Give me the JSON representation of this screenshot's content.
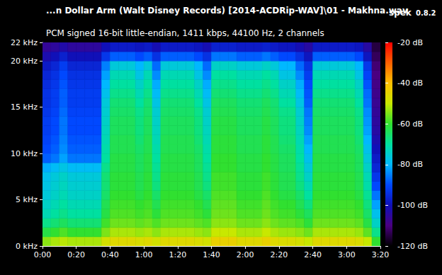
{
  "chart_data": {
    "type": "heatmap",
    "title": "...n Dollar Arm (Walt Disney Records) [2014-ACDRip-WAV]\\01 - Makhna.wav",
    "subtitle": "PCM signed 16-bit little-endian, 1411 kbps, 44100 Hz, 2 channels",
    "annotations": [
      "spek",
      "0.8.2"
    ],
    "grid": false,
    "xlim": [
      0,
      200
    ],
    "xticks": [
      {
        "value": 0,
        "label": "0:00"
      },
      {
        "value": 20,
        "label": "0:20"
      },
      {
        "value": 40,
        "label": "0:40"
      },
      {
        "value": 60,
        "label": "1:00"
      },
      {
        "value": 80,
        "label": "1:20"
      },
      {
        "value": 100,
        "label": "1:40"
      },
      {
        "value": 120,
        "label": "2:00"
      },
      {
        "value": 140,
        "label": "2:20"
      },
      {
        "value": 160,
        "label": "2:40"
      },
      {
        "value": 180,
        "label": "3:00"
      },
      {
        "value": 200,
        "label": "3:20"
      }
    ],
    "ylim": [
      0,
      22
    ],
    "yticks": [
      {
        "value": 0,
        "label": "0 kHz"
      },
      {
        "value": 5,
        "label": "5 kHz"
      },
      {
        "value": 10,
        "label": "10 kHz"
      },
      {
        "value": 15,
        "label": "15 kHz"
      },
      {
        "value": 20,
        "label": "20 kHz"
      },
      {
        "value": 22,
        "label": "22 kHz"
      }
    ],
    "time_bins": [
      0,
      5,
      10,
      15,
      20,
      25,
      30,
      35,
      40,
      45,
      50,
      55,
      60,
      65,
      70,
      75,
      80,
      85,
      90,
      95,
      100,
      105,
      110,
      115,
      120,
      125,
      130,
      135,
      140,
      145,
      150,
      155,
      160,
      165,
      170,
      175,
      180,
      185,
      190,
      195,
      200
    ],
    "freq_bins": [
      0,
      1,
      2,
      3,
      4,
      5,
      6,
      7,
      8,
      9,
      10,
      11,
      12,
      13,
      14,
      15,
      16,
      17,
      18,
      19,
      20,
      21,
      22
    ],
    "cells": [
      [
        -54,
        -62,
        -68,
        -72,
        -74,
        -76,
        -77,
        -78,
        -81,
        -88,
        -90,
        -91,
        -92,
        -92,
        -93,
        -94,
        -94,
        -95,
        -96,
        -98,
        -102,
        -106
      ],
      [
        -52,
        -60,
        -66,
        -70,
        -72,
        -74,
        -75,
        -76,
        -79,
        -86,
        -88,
        -89,
        -90,
        -90,
        -91,
        -92,
        -92,
        -93,
        -94,
        -96,
        -100,
        -105
      ],
      [
        -51,
        -58,
        -64,
        -68,
        -70,
        -72,
        -73,
        -74,
        -77,
        -82,
        -84,
        -85,
        -86,
        -86,
        -87,
        -88,
        -88,
        -89,
        -90,
        -92,
        -97,
        -103
      ],
      [
        -52,
        -60,
        -66,
        -70,
        -72,
        -74,
        -75,
        -76,
        -79,
        -86,
        -88,
        -89,
        -90,
        -90,
        -91,
        -92,
        -92,
        -93,
        -94,
        -96,
        -100,
        -105
      ],
      [
        -52,
        -60,
        -66,
        -70,
        -72,
        -74,
        -75,
        -76,
        -79,
        -86,
        -88,
        -89,
        -90,
        -90,
        -91,
        -92,
        -92,
        -93,
        -94,
        -96,
        -100,
        -105
      ],
      [
        -52,
        -60,
        -66,
        -70,
        -72,
        -74,
        -75,
        -76,
        -79,
        -86,
        -88,
        -89,
        -90,
        -90,
        -91,
        -92,
        -92,
        -93,
        -94,
        -96,
        -100,
        -105
      ],
      [
        -52,
        -60,
        -66,
        -70,
        -72,
        -74,
        -75,
        -76,
        -79,
        -86,
        -88,
        -89,
        -90,
        -90,
        -91,
        -92,
        -92,
        -93,
        -94,
        -96,
        -100,
        -105
      ],
      [
        -48,
        -55,
        -59,
        -62,
        -63,
        -65,
        -66,
        -66,
        -68,
        -70,
        -71,
        -72,
        -73,
        -74,
        -75,
        -76,
        -78,
        -80,
        -82,
        -85,
        -93,
        -100
      ],
      [
        -46,
        -52,
        -56,
        -58,
        -59,
        -60,
        -61,
        -61,
        -62,
        -62,
        -63,
        -63,
        -64,
        -64,
        -65,
        -66,
        -68,
        -70,
        -72,
        -76,
        -88,
        -98
      ],
      [
        -46,
        -52,
        -56,
        -58,
        -59,
        -60,
        -61,
        -61,
        -62,
        -62,
        -63,
        -63,
        -64,
        -64,
        -65,
        -66,
        -68,
        -70,
        -72,
        -76,
        -88,
        -98
      ],
      [
        -46,
        -52,
        -56,
        -58,
        -59,
        -60,
        -61,
        -61,
        -62,
        -62,
        -63,
        -63,
        -64,
        -64,
        -65,
        -66,
        -68,
        -70,
        -72,
        -76,
        -88,
        -98
      ],
      [
        -47,
        -53,
        -57,
        -59,
        -60,
        -62,
        -63,
        -63,
        -64,
        -64,
        -65,
        -66,
        -67,
        -67,
        -68,
        -70,
        -72,
        -74,
        -77,
        -80,
        -90,
        -99
      ],
      [
        -46,
        -52,
        -56,
        -58,
        -59,
        -60,
        -61,
        -61,
        -62,
        -62,
        -63,
        -63,
        -64,
        -64,
        -65,
        -66,
        -68,
        -70,
        -72,
        -76,
        -88,
        -98
      ],
      [
        -48,
        -54,
        -58,
        -61,
        -63,
        -65,
        -67,
        -68,
        -69,
        -70,
        -71,
        -72,
        -73,
        -74,
        -75,
        -77,
        -79,
        -81,
        -84,
        -87,
        -94,
        -101
      ],
      [
        -46,
        -52,
        -56,
        -58,
        -59,
        -60,
        -61,
        -61,
        -62,
        -62,
        -63,
        -63,
        -64,
        -64,
        -65,
        -66,
        -68,
        -70,
        -72,
        -76,
        -88,
        -98
      ],
      [
        -46,
        -52,
        -56,
        -58,
        -59,
        -60,
        -61,
        -61,
        -62,
        -62,
        -63,
        -63,
        -64,
        -64,
        -65,
        -66,
        -68,
        -70,
        -72,
        -76,
        -88,
        -98
      ],
      [
        -46,
        -52,
        -56,
        -58,
        -59,
        -60,
        -61,
        -61,
        -62,
        -62,
        -63,
        -63,
        -64,
        -64,
        -65,
        -66,
        -68,
        -70,
        -72,
        -76,
        -88,
        -98
      ],
      [
        -46,
        -52,
        -56,
        -58,
        -59,
        -60,
        -61,
        -61,
        -62,
        -62,
        -63,
        -63,
        -64,
        -64,
        -65,
        -66,
        -68,
        -70,
        -72,
        -76,
        -88,
        -98
      ],
      [
        -47,
        -53,
        -57,
        -59,
        -60,
        -62,
        -63,
        -63,
        -64,
        -64,
        -65,
        -66,
        -67,
        -67,
        -68,
        -70,
        -72,
        -74,
        -77,
        -80,
        -90,
        -99
      ],
      [
        -48,
        -54,
        -58,
        -61,
        -63,
        -65,
        -67,
        -68,
        -69,
        -70,
        -71,
        -72,
        -73,
        -74,
        -75,
        -77,
        -79,
        -81,
        -84,
        -87,
        -94,
        -101
      ],
      [
        -44,
        -50,
        -54,
        -56,
        -57,
        -58,
        -59,
        -59,
        -60,
        -60,
        -61,
        -61,
        -62,
        -62,
        -63,
        -64,
        -66,
        -68,
        -70,
        -74,
        -86,
        -97
      ],
      [
        -44,
        -50,
        -54,
        -56,
        -57,
        -58,
        -59,
        -59,
        -60,
        -60,
        -61,
        -61,
        -62,
        -62,
        -63,
        -64,
        -66,
        -68,
        -70,
        -74,
        -86,
        -97
      ],
      [
        -44,
        -50,
        -54,
        -56,
        -57,
        -58,
        -59,
        -59,
        -60,
        -60,
        -61,
        -61,
        -62,
        -62,
        -63,
        -64,
        -66,
        -68,
        -70,
        -74,
        -86,
        -97
      ],
      [
        -46,
        -52,
        -56,
        -58,
        -59,
        -60,
        -61,
        -61,
        -62,
        -62,
        -63,
        -63,
        -64,
        -64,
        -65,
        -66,
        -68,
        -70,
        -72,
        -76,
        -88,
        -98
      ],
      [
        -46,
        -52,
        -56,
        -58,
        -59,
        -60,
        -61,
        -61,
        -62,
        -62,
        -63,
        -63,
        -64,
        -64,
        -65,
        -66,
        -68,
        -70,
        -72,
        -76,
        -88,
        -98
      ],
      [
        -46,
        -52,
        -56,
        -58,
        -59,
        -60,
        -61,
        -61,
        -62,
        -62,
        -63,
        -63,
        -64,
        -64,
        -65,
        -66,
        -68,
        -70,
        -72,
        -76,
        -88,
        -98
      ],
      [
        -44,
        -50,
        -54,
        -56,
        -57,
        -58,
        -59,
        -59,
        -60,
        -60,
        -61,
        -61,
        -62,
        -62,
        -63,
        -64,
        -66,
        -68,
        -70,
        -74,
        -86,
        -97
      ],
      [
        -46,
        -52,
        -56,
        -58,
        -59,
        -60,
        -61,
        -61,
        -62,
        -62,
        -63,
        -63,
        -64,
        -64,
        -65,
        -66,
        -68,
        -70,
        -72,
        -76,
        -88,
        -98
      ],
      [
        -47,
        -53,
        -57,
        -59,
        -60,
        -62,
        -63,
        -63,
        -64,
        -64,
        -65,
        -66,
        -67,
        -67,
        -68,
        -70,
        -72,
        -74,
        -77,
        -80,
        -90,
        -99
      ],
      [
        -47,
        -53,
        -57,
        -59,
        -60,
        -62,
        -63,
        -63,
        -64,
        -64,
        -65,
        -66,
        -67,
        -67,
        -68,
        -70,
        -72,
        -74,
        -77,
        -80,
        -90,
        -99
      ],
      [
        -48,
        -54,
        -58,
        -61,
        -63,
        -65,
        -67,
        -68,
        -69,
        -70,
        -71,
        -72,
        -73,
        -74,
        -75,
        -77,
        -79,
        -81,
        -84,
        -87,
        -94,
        -101
      ],
      [
        -50,
        -56,
        -61,
        -64,
        -67,
        -70,
        -72,
        -74,
        -76,
        -78,
        -80,
        -82,
        -84,
        -85,
        -86,
        -88,
        -89,
        -90,
        -92,
        -94,
        -99,
        -104
      ],
      [
        -46,
        -52,
        -56,
        -58,
        -59,
        -60,
        -61,
        -61,
        -62,
        -62,
        -63,
        -63,
        -64,
        -64,
        -65,
        -66,
        -68,
        -70,
        -72,
        -76,
        -88,
        -98
      ],
      [
        -46,
        -52,
        -56,
        -58,
        -59,
        -60,
        -61,
        -61,
        -62,
        -62,
        -63,
        -63,
        -64,
        -64,
        -65,
        -66,
        -68,
        -70,
        -72,
        -76,
        -88,
        -98
      ],
      [
        -46,
        -52,
        -56,
        -58,
        -59,
        -60,
        -61,
        -61,
        -62,
        -62,
        -63,
        -63,
        -64,
        -64,
        -65,
        -66,
        -68,
        -70,
        -72,
        -76,
        -88,
        -98
      ],
      [
        -46,
        -52,
        -56,
        -58,
        -59,
        -60,
        -61,
        -61,
        -62,
        -62,
        -63,
        -63,
        -64,
        -64,
        -65,
        -66,
        -68,
        -70,
        -72,
        -76,
        -88,
        -98
      ],
      [
        -46,
        -52,
        -56,
        -58,
        -59,
        -60,
        -61,
        -61,
        -62,
        -62,
        -63,
        -63,
        -64,
        -64,
        -65,
        -66,
        -68,
        -70,
        -72,
        -76,
        -88,
        -98
      ],
      [
        -47,
        -53,
        -57,
        -59,
        -60,
        -62,
        -63,
        -63,
        -64,
        -64,
        -65,
        -66,
        -67,
        -67,
        -68,
        -70,
        -72,
        -74,
        -77,
        -80,
        -90,
        -99
      ],
      [
        -50,
        -57,
        -62,
        -65,
        -67,
        -69,
        -71,
        -72,
        -74,
        -76,
        -78,
        -80,
        -82,
        -83,
        -84,
        -86,
        -87,
        -89,
        -91,
        -93,
        -99,
        -104
      ],
      [
        -60,
        -68,
        -74,
        -78,
        -82,
        -86,
        -90,
        -93,
        -96,
        -98,
        -100,
        -102,
        -104,
        -105,
        -106,
        -107,
        -108,
        -109,
        -110,
        -111,
        -113,
        -115
      ]
    ],
    "colorbar": {
      "range": [
        -120,
        -20
      ],
      "ticks": [
        {
          "value": -20,
          "label": "-20 dB"
        },
        {
          "value": -40,
          "label": "-40 dB"
        },
        {
          "value": -60,
          "label": "-60 dB"
        },
        {
          "value": -80,
          "label": "-80 dB"
        },
        {
          "value": -100,
          "label": "-100 dB"
        },
        {
          "value": -120,
          "label": "-120 dB"
        }
      ]
    }
  }
}
